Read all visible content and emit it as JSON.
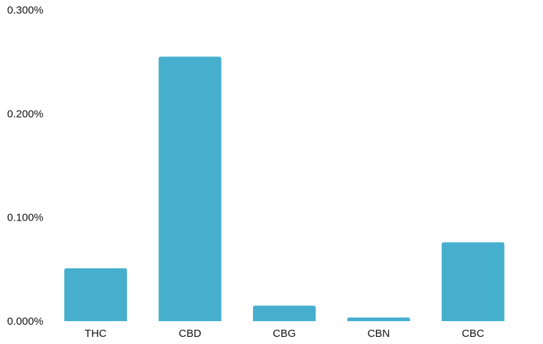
{
  "chart_data": {
    "type": "bar",
    "categories": [
      "THC",
      "CBD",
      "CBG",
      "CBN",
      "CBC"
    ],
    "values": [
      0.051,
      0.255,
      0.015,
      0.0035,
      0.076
    ],
    "ylim": [
      0,
      0.3
    ],
    "yticks": [
      0,
      0.1,
      0.2,
      0.3
    ],
    "ytick_labels": [
      "0.000%",
      "0.100%",
      "0.200%",
      "0.300%"
    ],
    "grid": false,
    "title": "",
    "xlabel": "",
    "ylabel": "",
    "bar_color": "#47AFCE",
    "text_color": "#111111"
  }
}
